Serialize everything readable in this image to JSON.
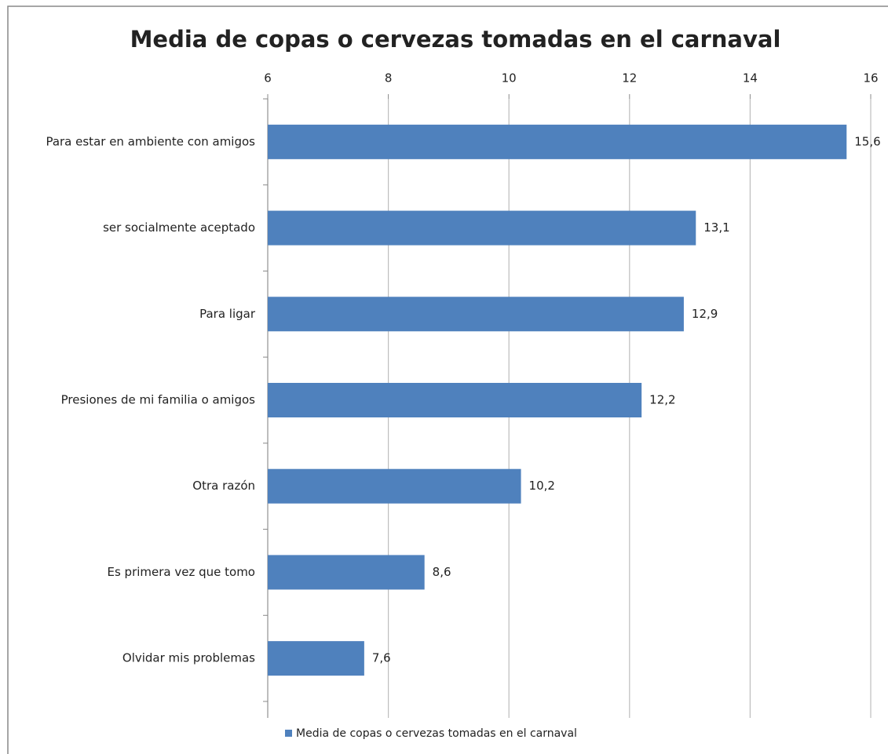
{
  "chart_data": {
    "type": "bar",
    "orientation": "horizontal",
    "title": "Media de copas o cervezas tomadas en el carnaval",
    "categories": [
      "Para estar en ambiente con amigos",
      "ser socialmente aceptado",
      "Para ligar",
      "Presiones de mi familia o amigos",
      "Otra razón",
      "Es primera vez que tomo",
      "Olvidar mis problemas"
    ],
    "series": [
      {
        "name": "Media de copas o cervezas tomadas en el carnaval",
        "color": "#4f81bd",
        "values": [
          15.6,
          13.1,
          12.9,
          12.2,
          10.2,
          8.6,
          7.6
        ],
        "value_labels": [
          "15,6",
          "13,1",
          "12,9",
          "12,2",
          "10,2",
          "8,6",
          "7,6"
        ]
      }
    ],
    "xlim": [
      6,
      16
    ],
    "xticks": [
      6,
      8,
      10,
      12,
      14,
      16
    ],
    "grid": true,
    "legend": "bottom"
  }
}
